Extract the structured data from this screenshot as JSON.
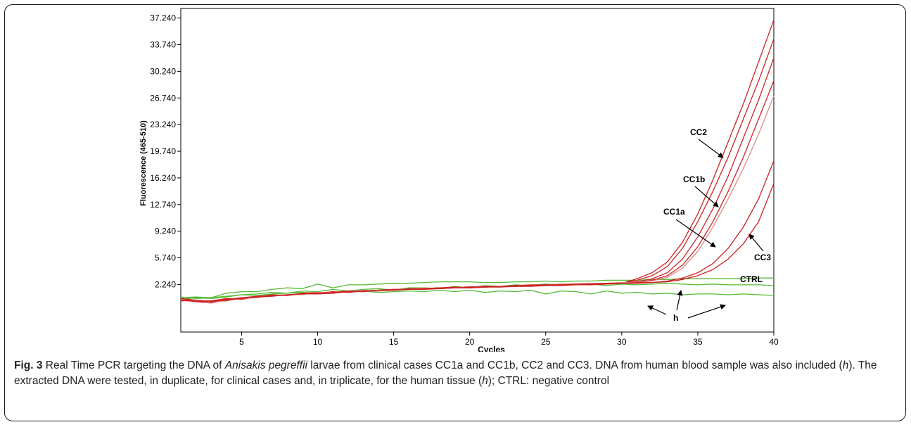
{
  "chart_data": {
    "type": "line",
    "xlabel": "Cycles",
    "ylabel": "Fluorescence (465-510)",
    "xlim": [
      1,
      40
    ],
    "ylim": [
      -4,
      38.5
    ],
    "xticks": [
      5,
      10,
      15,
      20,
      25,
      30,
      35,
      40
    ],
    "yticks": [
      "2.240",
      "5.740",
      "9.240",
      "12.740",
      "16.240",
      "19.740",
      "23.240",
      "26.740",
      "30.240",
      "33.740",
      "37.240"
    ],
    "ytick_values": [
      2.24,
      5.74,
      9.24,
      12.74,
      16.24,
      19.74,
      23.24,
      26.74,
      30.24,
      33.74,
      37.24
    ],
    "colors": {
      "clinical": "#cc2222",
      "clinical_light": "#e08a8a",
      "control": "#55bb33"
    },
    "x": [
      1,
      2,
      3,
      4,
      5,
      6,
      7,
      8,
      9,
      10,
      11,
      12,
      13,
      14,
      15,
      16,
      17,
      18,
      19,
      20,
      21,
      22,
      23,
      24,
      25,
      26,
      27,
      28,
      29,
      30,
      31,
      32,
      33,
      34,
      35,
      36,
      37,
      38,
      39,
      40
    ],
    "series": [
      {
        "group": "clinical",
        "values": [
          0.3,
          0.1,
          -0.1,
          0.2,
          0.4,
          0.6,
          0.8,
          0.9,
          1.0,
          1.1,
          1.2,
          1.3,
          1.4,
          1.5,
          1.5,
          1.6,
          1.7,
          1.7,
          1.8,
          1.8,
          1.9,
          1.9,
          2.0,
          2.0,
          2.1,
          2.1,
          2.2,
          2.2,
          2.3,
          2.4,
          3.0,
          3.8,
          5.2,
          7.8,
          11.5,
          16.0,
          21.0,
          26.0,
          31.5,
          37.0
        ]
      },
      {
        "group": "clinical",
        "values": [
          0.2,
          0.0,
          -0.2,
          0.3,
          0.5,
          0.6,
          0.7,
          0.9,
          1.0,
          1.0,
          1.1,
          1.3,
          1.4,
          1.4,
          1.5,
          1.6,
          1.6,
          1.7,
          1.8,
          1.8,
          1.9,
          2.0,
          2.0,
          2.1,
          2.1,
          2.2,
          2.2,
          2.3,
          2.3,
          2.4,
          2.8,
          3.4,
          4.6,
          7.0,
          10.5,
          14.5,
          19.0,
          24.0,
          29.0,
          34.5
        ]
      },
      {
        "group": "clinical",
        "values": [
          0.4,
          0.2,
          0.0,
          0.1,
          0.5,
          0.7,
          0.8,
          0.8,
          1.1,
          1.2,
          1.2,
          1.4,
          1.3,
          1.5,
          1.6,
          1.6,
          1.7,
          1.8,
          1.8,
          1.9,
          1.9,
          2.0,
          2.1,
          2.1,
          2.2,
          2.2,
          2.3,
          2.3,
          2.4,
          2.4,
          2.6,
          3.0,
          3.8,
          5.6,
          8.5,
          12.2,
          16.5,
          21.5,
          26.5,
          32.0
        ]
      },
      {
        "group": "clinical",
        "values": [
          0.1,
          0.1,
          0.1,
          0.4,
          0.3,
          0.6,
          0.9,
          0.8,
          1.0,
          1.1,
          1.3,
          1.2,
          1.4,
          1.5,
          1.5,
          1.7,
          1.7,
          1.8,
          1.9,
          1.9,
          2.0,
          2.0,
          2.1,
          2.2,
          2.2,
          2.3,
          2.3,
          2.4,
          2.4,
          2.5,
          2.5,
          2.8,
          3.4,
          4.8,
          7.2,
          10.5,
          14.5,
          19.0,
          24.0,
          29.0
        ]
      },
      {
        "group": "clinical_light",
        "values": [
          0.3,
          0.2,
          -0.2,
          0.2,
          0.4,
          0.5,
          0.8,
          0.9,
          0.9,
          1.2,
          1.2,
          1.3,
          1.5,
          1.4,
          1.6,
          1.6,
          1.8,
          1.7,
          1.8,
          2.0,
          1.9,
          2.0,
          2.1,
          2.1,
          2.2,
          2.3,
          2.3,
          2.4,
          2.4,
          2.5,
          2.5,
          2.7,
          3.2,
          4.4,
          6.6,
          9.8,
          13.5,
          17.5,
          22.0,
          27.0
        ]
      },
      {
        "group": "clinical",
        "values": [
          0.2,
          0.0,
          0.1,
          0.3,
          0.5,
          0.6,
          0.7,
          0.9,
          1.0,
          1.1,
          1.1,
          1.3,
          1.4,
          1.5,
          1.5,
          1.6,
          1.7,
          1.7,
          1.8,
          1.9,
          1.9,
          2.0,
          2.0,
          2.1,
          2.2,
          2.2,
          2.3,
          2.3,
          2.4,
          2.4,
          2.5,
          2.5,
          2.7,
          3.1,
          3.8,
          5.0,
          7.0,
          9.8,
          13.5,
          18.5
        ]
      },
      {
        "group": "clinical",
        "values": [
          0.4,
          0.1,
          0.0,
          0.2,
          0.4,
          0.7,
          0.8,
          0.8,
          1.1,
          1.1,
          1.2,
          1.4,
          1.3,
          1.5,
          1.6,
          1.6,
          1.7,
          1.8,
          1.8,
          1.9,
          2.0,
          2.0,
          2.1,
          2.1,
          2.2,
          2.2,
          2.3,
          2.3,
          2.4,
          2.4,
          2.4,
          2.5,
          2.6,
          2.9,
          3.4,
          4.2,
          5.6,
          7.6,
          10.5,
          15.5
        ]
      },
      {
        "group": "control",
        "values": [
          0.5,
          0.6,
          0.5,
          1.1,
          1.3,
          1.3,
          1.6,
          1.8,
          1.7,
          2.3,
          1.8,
          2.2,
          2.2,
          2.3,
          2.4,
          2.4,
          2.5,
          2.6,
          2.6,
          2.6,
          2.5,
          2.5,
          2.6,
          2.6,
          2.7,
          2.6,
          2.7,
          2.7,
          2.8,
          2.8,
          2.8,
          2.9,
          2.9,
          3.0,
          3.0,
          3.0,
          3.0,
          3.0,
          3.1,
          3.1
        ]
      },
      {
        "group": "control",
        "values": [
          0.6,
          0.4,
          0.5,
          0.7,
          0.9,
          1.0,
          1.2,
          1.1,
          1.4,
          1.3,
          1.6,
          1.4,
          1.6,
          1.7,
          1.5,
          1.8,
          1.8,
          1.7,
          2.0,
          1.8,
          2.1,
          2.0,
          2.2,
          2.1,
          2.3,
          2.2,
          2.2,
          2.3,
          2.1,
          2.3,
          2.2,
          2.3,
          2.4,
          2.3,
          2.2,
          2.3,
          2.2,
          2.2,
          2.2,
          2.1
        ]
      },
      {
        "group": "control",
        "values": [
          0.3,
          0.5,
          0.4,
          0.6,
          0.9,
          0.8,
          1.0,
          1.1,
          1.2,
          1.1,
          1.2,
          1.3,
          1.4,
          1.2,
          1.3,
          1.4,
          1.3,
          1.5,
          1.3,
          1.5,
          1.2,
          1.4,
          1.3,
          1.5,
          1.0,
          1.4,
          1.3,
          1.0,
          1.4,
          1.1,
          1.2,
          1.0,
          1.1,
          0.9,
          1.0,
          1.0,
          0.9,
          1.0,
          0.9,
          0.8
        ]
      }
    ],
    "annotations": [
      "CC2",
      "CC1b",
      "CC1a",
      "CC3",
      "CTRL",
      "h"
    ]
  },
  "caption": {
    "fig_label": "Fig. 3",
    "text_before": " Real Time PCR targeting the DNA of ",
    "species": "Anisakis pegreffii",
    "text_after_species": " larvae from clinical cases CC1a and CC1b, CC2 and CC3. DNA from human blood sample was also included (",
    "h1": "h",
    "text_mid": "). The extracted DNA were tested, in duplicate, for clinical cases and, in triplicate, for the human tissue (",
    "h2": "h",
    "text_end": "); CTRL: negative control"
  }
}
